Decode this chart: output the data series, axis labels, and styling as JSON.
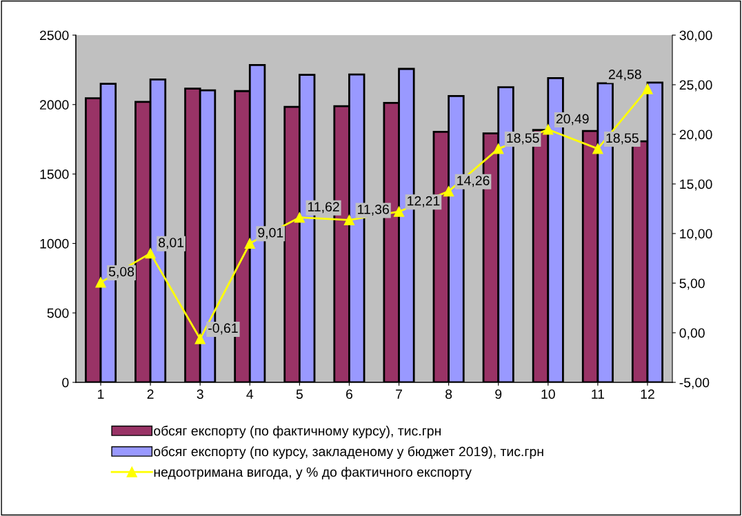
{
  "chart_data": {
    "type": "bar",
    "categories": [
      "1",
      "2",
      "3",
      "4",
      "5",
      "6",
      "7",
      "8",
      "9",
      "10",
      "11",
      "12"
    ],
    "series": [
      {
        "name": "обсяг експорту (по фактичному курсу), тис.грн",
        "color": "#993366",
        "values": [
          2045,
          2020,
          2115,
          2097,
          1983,
          1989,
          2012,
          1804,
          1792,
          1817,
          1810,
          1736
        ]
      },
      {
        "name": "обсяг експорту (по курсу, закладеному у бюджет 2019), тис.грн",
        "color": "#9999ff",
        "values": [
          2150,
          2181,
          2103,
          2285,
          2214,
          2217,
          2257,
          2062,
          2125,
          2191,
          2153,
          2158
        ]
      },
      {
        "name": "недоотримана вигода, у % до фактичного експорту",
        "color": "#ffff00",
        "type": "line",
        "axis": "y2",
        "marker": "triangle",
        "values": [
          5.08,
          8.01,
          -0.61,
          9.01,
          11.62,
          11.36,
          12.21,
          14.26,
          18.55,
          20.49,
          18.55,
          24.58
        ],
        "value_labels": [
          "5,08",
          "8,01",
          "-0,61",
          "9,01",
          "11,62",
          "11,36",
          "12,21",
          "14,26",
          "18,55",
          "20,49",
          "18,55",
          "24,58"
        ]
      }
    ],
    "ylim": [
      0,
      2500
    ],
    "yticks": [
      0,
      500,
      1000,
      1500,
      2000,
      2500
    ],
    "y2lim": [
      -5,
      30
    ],
    "y2ticks": [
      {
        "value": -5,
        "label": "-5,00"
      },
      {
        "value": 0,
        "label": "0,00"
      },
      {
        "value": 5,
        "label": "5,00"
      },
      {
        "value": 10,
        "label": "10,00"
      },
      {
        "value": 15,
        "label": "15,00"
      },
      {
        "value": 20,
        "label": "20,00"
      },
      {
        "value": 25,
        "label": "25,00"
      },
      {
        "value": 30,
        "label": "30,00"
      }
    ],
    "grid": false,
    "legend": "bottom"
  }
}
